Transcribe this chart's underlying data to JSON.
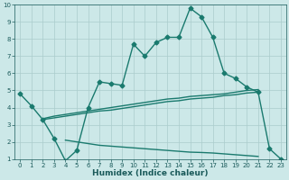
{
  "xlabel": "Humidex (Indice chaleur)",
  "x": [
    0,
    1,
    2,
    3,
    4,
    5,
    6,
    7,
    8,
    9,
    10,
    11,
    12,
    13,
    14,
    15,
    16,
    17,
    18,
    19,
    20,
    21,
    22,
    23
  ],
  "line_main": [
    4.8,
    4.1,
    3.3,
    2.2,
    0.9,
    1.5,
    4.0,
    5.5,
    5.4,
    5.3,
    7.7,
    7.0,
    7.8,
    8.1,
    8.1,
    9.8,
    9.3,
    8.1,
    6.0,
    5.7,
    5.2,
    4.9,
    1.6,
    1.0
  ],
  "line_upper": [
    null,
    null,
    3.35,
    3.5,
    3.6,
    3.7,
    3.8,
    3.9,
    4.0,
    4.1,
    4.2,
    4.3,
    4.4,
    4.5,
    4.55,
    4.65,
    4.7,
    4.75,
    4.8,
    4.9,
    5.0,
    5.05,
    null,
    null
  ],
  "line_mid": [
    null,
    null,
    3.3,
    3.4,
    3.5,
    3.6,
    3.7,
    3.8,
    3.85,
    3.95,
    4.05,
    4.15,
    4.25,
    4.35,
    4.4,
    4.5,
    4.55,
    4.6,
    4.7,
    4.75,
    4.85,
    4.9,
    null,
    null
  ],
  "line_lower": [
    null,
    null,
    null,
    null,
    2.1,
    2.0,
    1.9,
    1.8,
    1.75,
    1.7,
    1.65,
    1.6,
    1.55,
    1.5,
    1.45,
    1.4,
    1.38,
    1.35,
    1.3,
    1.25,
    1.2,
    1.15,
    null,
    null
  ],
  "ylim": [
    1,
    10
  ],
  "xlim": [
    -0.5,
    23.5
  ],
  "yticks": [
    1,
    2,
    3,
    4,
    5,
    6,
    7,
    8,
    9,
    10
  ],
  "xticks": [
    0,
    1,
    2,
    3,
    4,
    5,
    6,
    7,
    8,
    9,
    10,
    11,
    12,
    13,
    14,
    15,
    16,
    17,
    18,
    19,
    20,
    21,
    22,
    23
  ],
  "line_color": "#1a7a6e",
  "bg_color": "#cce8e8",
  "grid_color": "#aacccc"
}
